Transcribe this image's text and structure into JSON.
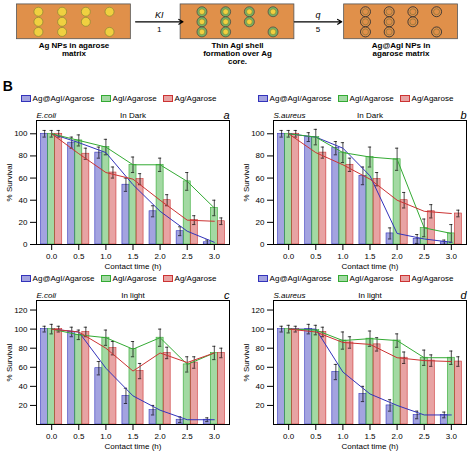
{
  "annotations": [
    "Ag NPs in agarose matrix",
    "KI",
    "1",
    "Thin AgI shell formation over Ag core.",
    "q",
    "5",
    "Ag@AgI NPs in agarose matrix",
    "B"
  ],
  "chart_data": [
    {
      "type": "bar",
      "annotations": [
        "E.coli",
        "In Dark",
        "a"
      ],
      "x": [
        0.0,
        0.5,
        1.0,
        1.5,
        2.0,
        2.5,
        3.0
      ],
      "xlim": [
        -0.28,
        3.28
      ],
      "xticks": [
        {
          "value": 0.0,
          "label": "0.0"
        },
        {
          "value": 0.5,
          "label": "0.5"
        },
        {
          "value": 1.0,
          "label": "1.0"
        },
        {
          "value": 1.5,
          "label": "1.5"
        },
        {
          "value": 2.0,
          "label": "2.0"
        },
        {
          "value": 2.5,
          "label": "2.5"
        },
        {
          "value": 3.0,
          "label": "3.0"
        }
      ],
      "ylim": [
        0,
        112
      ],
      "yticks": [
        0,
        20,
        40,
        60,
        80,
        100
      ],
      "x_label": "Contact time (h)",
      "y_label": "% Survival",
      "legend": "top",
      "series": [
        {
          "name": "Ag@AgI/Agarose",
          "color": "#3333bb",
          "values": [
            100,
            92,
            83,
            54,
            30,
            12,
            2
          ],
          "errors": [
            3,
            5,
            5,
            6,
            5,
            4,
            2
          ]
        },
        {
          "name": "AgI/Agarose",
          "color": "#33aa33",
          "values": [
            100,
            94,
            88,
            72,
            72,
            57,
            33
          ],
          "errors": [
            3,
            5,
            7,
            7,
            6,
            8,
            7
          ]
        },
        {
          "name": "Ag/Agarose",
          "color": "#cc3333",
          "values": [
            100,
            82,
            65,
            59,
            40,
            22,
            21
          ],
          "errors": [
            3,
            5,
            5,
            5,
            5,
            4,
            3
          ]
        }
      ]
    },
    {
      "type": "bar",
      "annotations": [
        "S.aureus",
        "In Dark",
        "b"
      ],
      "x": [
        0.0,
        0.5,
        1.0,
        1.5,
        2.0,
        2.5,
        3.0
      ],
      "xlim": [
        -0.28,
        3.28
      ],
      "xticks": [
        {
          "value": 0.0,
          "label": "0.0"
        },
        {
          "value": 0.5,
          "label": "0.5"
        },
        {
          "value": 1.0,
          "label": "1.0"
        },
        {
          "value": 1.5,
          "label": "1.5"
        },
        {
          "value": 2.0,
          "label": "2.0"
        },
        {
          "value": 2.5,
          "label": "2.5"
        },
        {
          "value": 3.0,
          "label": "3.0"
        }
      ],
      "ylim": [
        0,
        112
      ],
      "yticks": [
        0,
        20,
        40,
        60,
        80,
        100
      ],
      "x_label": "Contact time (h)",
      "y_label": "% Survival",
      "legend": "top",
      "series": [
        {
          "name": "Ag@AgI/Agarose",
          "color": "#3333bb",
          "values": [
            100,
            97,
            87,
            62,
            10,
            5,
            2
          ],
          "errors": [
            3,
            4,
            6,
            8,
            5,
            4,
            2
          ]
        },
        {
          "name": "AgI/Agarose",
          "color": "#33aa33",
          "values": [
            100,
            97,
            83,
            79,
            77,
            15,
            10
          ],
          "errors": [
            3,
            7,
            9,
            9,
            10,
            8,
            8
          ]
        },
        {
          "name": "Ag/Agarose",
          "color": "#cc3333",
          "values": [
            100,
            83,
            72,
            59,
            40,
            30,
            28
          ],
          "errors": [
            3,
            5,
            6,
            6,
            7,
            6,
            3
          ]
        }
      ]
    },
    {
      "type": "bar",
      "annotations": [
        "E.coli",
        "In light",
        "c"
      ],
      "x": [
        0.0,
        0.5,
        1.0,
        1.5,
        2.0,
        2.5,
        3.0
      ],
      "xlim": [
        -0.28,
        3.28
      ],
      "xticks": [
        {
          "value": 0.0,
          "label": "0.0"
        },
        {
          "value": 0.5,
          "label": "0.5"
        },
        {
          "value": 1.0,
          "label": "1.0"
        },
        {
          "value": 1.5,
          "label": "1.5"
        },
        {
          "value": 2.0,
          "label": "2.0"
        },
        {
          "value": 2.5,
          "label": "2.5"
        },
        {
          "value": 3.0,
          "label": "3.0"
        }
      ],
      "ylim": [
        0,
        130
      ],
      "yticks": [
        20,
        40,
        60,
        80,
        100,
        120
      ],
      "x_label": "Contact time (h)",
      "y_label": "% Survival",
      "legend": "top",
      "series": [
        {
          "name": "Ag@AgI/Agarose",
          "color": "#3333bb",
          "values": [
            100,
            97,
            59,
            30,
            15,
            5,
            5
          ],
          "errors": [
            3,
            5,
            7,
            8,
            5,
            3,
            2
          ]
        },
        {
          "name": "AgI/Agarose",
          "color": "#33aa33",
          "values": [
            100,
            94,
            91,
            79,
            91,
            63,
            75
          ],
          "errors": [
            5,
            5,
            8,
            8,
            9,
            8,
            7
          ]
        },
        {
          "name": "Ag/Agarose",
          "color": "#cc3333",
          "values": [
            100,
            97,
            80,
            56,
            75,
            65,
            75
          ],
          "errors": [
            3,
            5,
            7,
            8,
            6,
            6,
            5
          ]
        }
      ]
    },
    {
      "type": "bar",
      "annotations": [
        "S.aureus",
        "In light",
        "d"
      ],
      "x": [
        0.0,
        0.5,
        1.0,
        1.5,
        2.0,
        2.5,
        3.0
      ],
      "xlim": [
        -0.28,
        3.28
      ],
      "xticks": [
        {
          "value": 0.0,
          "label": "0.0"
        },
        {
          "value": 0.5,
          "label": "0.5"
        },
        {
          "value": 1.0,
          "label": "1.0"
        },
        {
          "value": 1.5,
          "label": "1.5"
        },
        {
          "value": 2.0,
          "label": "2.0"
        },
        {
          "value": 2.5,
          "label": "2.5"
        },
        {
          "value": 3.0,
          "label": "3.0"
        }
      ],
      "ylim": [
        0,
        130
      ],
      "yticks": [
        20,
        40,
        60,
        80,
        100,
        120
      ],
      "x_label": "Contact time (h)",
      "y_label": "% Survival",
      "legend": "top",
      "series": [
        {
          "name": "Ag@AgI/Agarose",
          "color": "#3333bb",
          "values": [
            100,
            100,
            55,
            32,
            20,
            10,
            10
          ],
          "errors": [
            3,
            5,
            8,
            8,
            6,
            4,
            3
          ]
        },
        {
          "name": "AgI/Agarose",
          "color": "#33aa33",
          "values": [
            100,
            99,
            88,
            90,
            88,
            70,
            70
          ],
          "errors": [
            4,
            5,
            9,
            8,
            7,
            8,
            7
          ]
        },
        {
          "name": "Ag/Agarose",
          "color": "#cc3333",
          "values": [
            100,
            97,
            86,
            84,
            70,
            67,
            66
          ],
          "errors": [
            3,
            5,
            6,
            7,
            6,
            6,
            5
          ]
        }
      ]
    }
  ]
}
